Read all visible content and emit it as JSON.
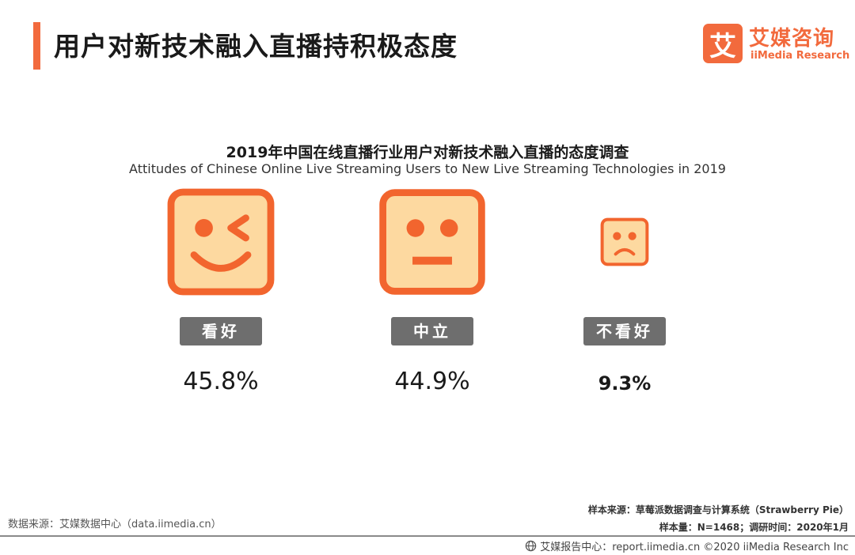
{
  "page": {
    "title": "用户对新技术融入直播持积极态度"
  },
  "logo": {
    "mark": "艾",
    "name_cn": "艾媒咨询",
    "name_en": "iiMedia Research"
  },
  "colors": {
    "accent": "#f26a3d",
    "face_fill": "#fdd9a0",
    "face_border": "#f2652e",
    "feature": "#f2652e",
    "label_bg": "#6e6e6e",
    "label_text": "#ffffff",
    "footer_line": "#8a8a8a"
  },
  "chart_data": {
    "type": "icon-proportion",
    "title": "2019年中国在线直播行业用户对新技术融入直播的态度调查",
    "subtitle": "Attitudes of Chinese Online Live Streaming Users to New Live Streaming Technologies in 2019",
    "unit": "%",
    "categories": [
      "看好",
      "中立",
      "不看好"
    ],
    "values": [
      45.8,
      44.9,
      9.3
    ],
    "value_labels": [
      "45.8%",
      "44.9%",
      "9.3%"
    ],
    "icons": [
      "winking-smile-face",
      "neutral-face",
      "sad-face"
    ]
  },
  "footer": {
    "data_source": "数据来源：艾媒数据中心（data.iimedia.cn）",
    "sample_source": "样本来源：草莓派数据调查与计算系统（Strawberry Pie）",
    "sample_info": "样本量：N=1468；调研时间：2020年1月",
    "report_center": "艾媒报告中心：report.iimedia.cn  ©2020  iiMedia Research  Inc",
    "globe_icon": "globe-icon"
  }
}
